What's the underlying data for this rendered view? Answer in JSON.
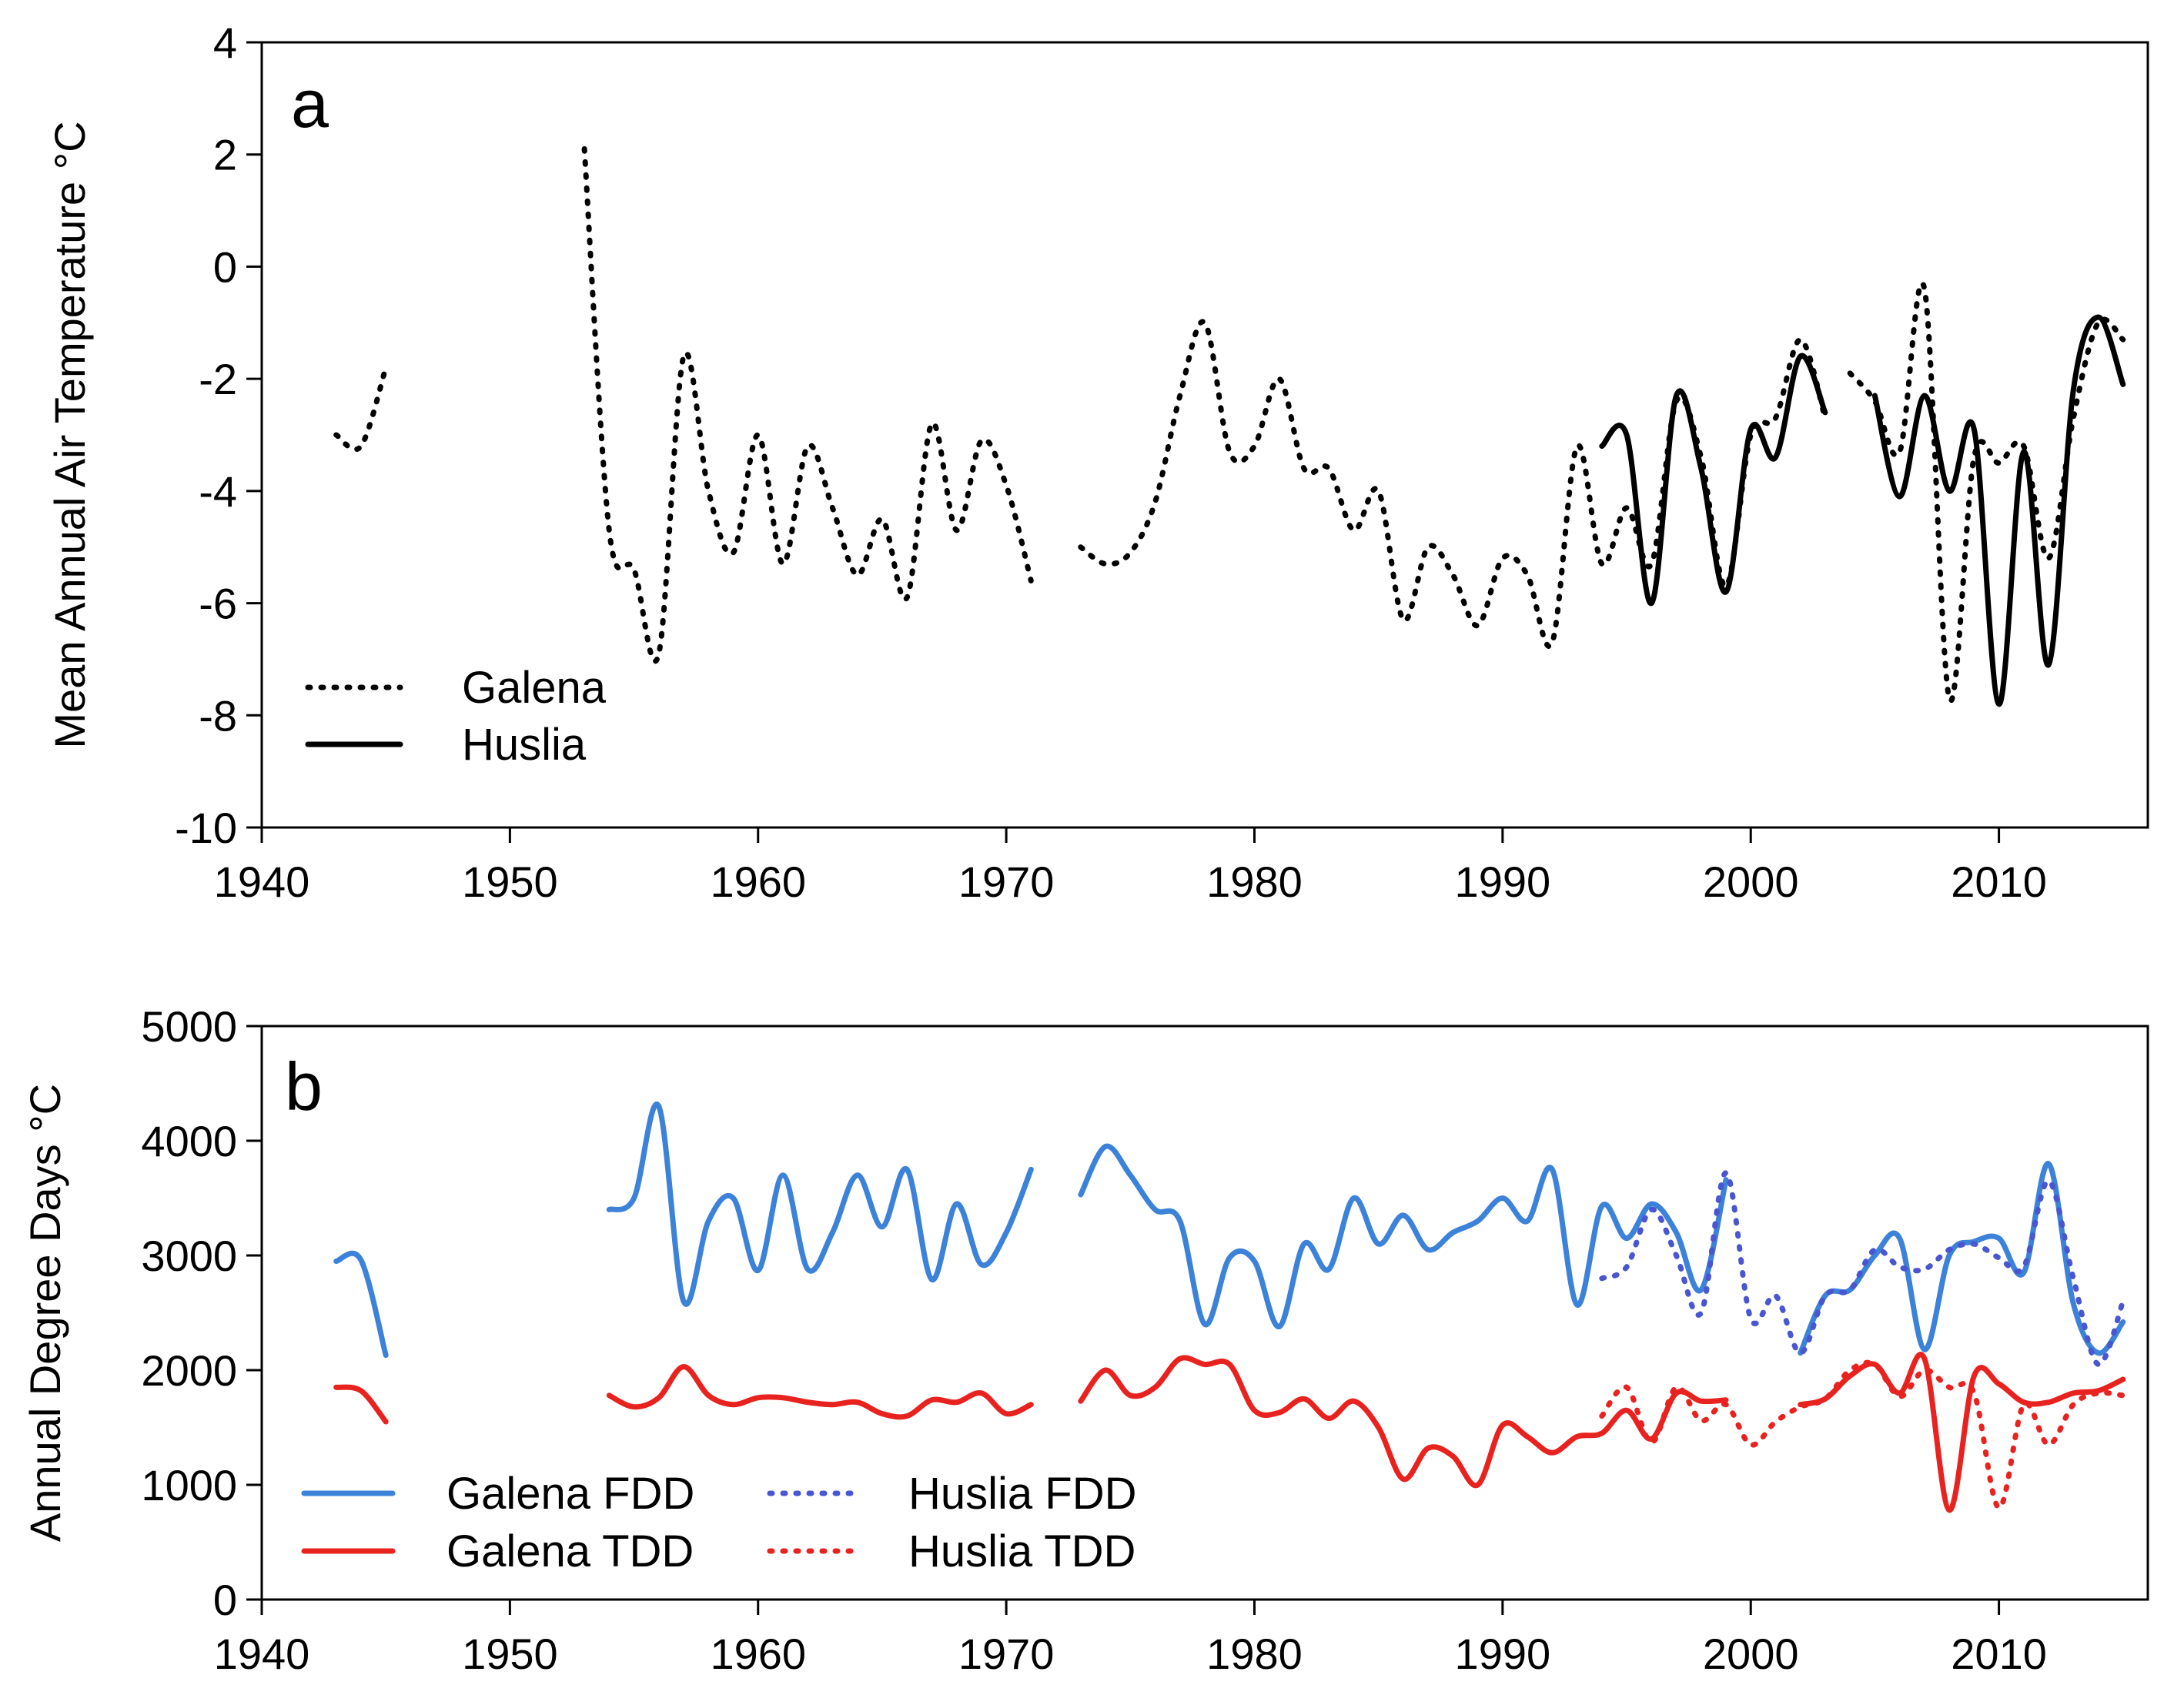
{
  "chart_data": [
    {
      "type": "line",
      "panel_label": "a",
      "ylabel": "Mean Annual Air Temperature °C",
      "xlabel": "",
      "xlim": [
        1940,
        2016
      ],
      "ylim": [
        -10,
        4
      ],
      "xticks": [
        "1940",
        "1950",
        "1960",
        "1970",
        "1980",
        "1990",
        "2000",
        "2010"
      ],
      "yticks": [
        "-10",
        "-8",
        "-6",
        "-4",
        "-2",
        "0",
        "2",
        "4"
      ],
      "legend_position": "bottom-left",
      "series": [
        {
          "name": "Galena",
          "color": "#000000",
          "style": "dotted",
          "segments": [
            {
              "x": [
                1943,
                1944,
                1945
              ],
              "y": [
                -3.0,
                -3.2,
                -1.8
              ]
            },
            {
              "x": [
                1953,
                1954,
                1955,
                1956,
                1957,
                1958,
                1959,
                1960,
                1961,
                1962,
                1963,
                1964,
                1965,
                1966,
                1967,
                1968,
                1969,
                1970,
                1971
              ],
              "y": [
                2.1,
                -4.7,
                -5.4,
                -6.9,
                -1.6,
                -4.0,
                -5.1,
                -3.0,
                -5.3,
                -3.2,
                -4.3,
                -5.5,
                -4.5,
                -5.9,
                -2.8,
                -4.7,
                -3.1,
                -3.9,
                -5.6
              ]
            },
            {
              "x": [
                1973,
                1974,
                1975,
                1976,
                1977,
                1978,
                1979,
                1980,
                1981,
                1982,
                1983,
                1984,
                1985,
                1986,
                1987,
                1988,
                1989,
                1990,
                1991,
                1992,
                1993,
                1994,
                1995,
                1996,
                1997,
                1998,
                1999,
                2000,
                2001,
                2002,
                2003
              ],
              "y": [
                -5.0,
                -5.3,
                -5.1,
                -4.2,
                -2.3,
                -1.0,
                -3.3,
                -3.2,
                -2.0,
                -3.6,
                -3.6,
                -4.7,
                -4.0,
                -6.3,
                -5.0,
                -5.5,
                -6.4,
                -5.2,
                -5.5,
                -6.7,
                -3.2,
                -5.3,
                -4.3,
                -5.3,
                -2.4,
                -3.4,
                -5.7,
                -3.0,
                -2.7,
                -1.3,
                -2.7
              ]
            },
            {
              "x": [
                2004,
                2005,
                2006,
                2007,
                2008,
                2009,
                2010,
                2011,
                2012,
                2013,
                2014,
                2015
              ],
              "y": [
                -1.9,
                -2.4,
                -3.3,
                -0.4,
                -7.7,
                -3.4,
                -3.5,
                -3.2,
                -5.2,
                -2.7,
                -1.0,
                -1.3
              ]
            }
          ]
        },
        {
          "name": "Huslia",
          "color": "#000000",
          "style": "solid",
          "segments": [
            {
              "x": [
                1994,
                1995,
                1996,
                1997,
                1998,
                1999,
                2000,
                2001,
                2002,
                2003
              ],
              "y": [
                -3.2,
                -3.0,
                -6.0,
                -2.3,
                -3.6,
                -5.8,
                -2.9,
                -3.4,
                -1.6,
                -2.6
              ]
            },
            {
              "x": [
                2005,
                2006,
                2007,
                2008,
                2009,
                2010,
                2011,
                2012,
                2013,
                2014,
                2015
              ],
              "y": [
                -2.3,
                -4.1,
                -2.3,
                -4.0,
                -2.9,
                -7.8,
                -3.3,
                -7.1,
                -2.2,
                -0.9,
                -2.1
              ]
            }
          ]
        }
      ]
    },
    {
      "type": "line",
      "panel_label": "b",
      "ylabel": "Annual Degree Days °C",
      "xlabel": "",
      "xlim": [
        1940,
        2016
      ],
      "ylim": [
        0,
        5000
      ],
      "xticks": [
        "1940",
        "1950",
        "1960",
        "1970",
        "1980",
        "1990",
        "2000",
        "2010"
      ],
      "yticks": [
        "0",
        "1000",
        "2000",
        "3000",
        "4000",
        "5000"
      ],
      "legend_position": "bottom-left",
      "series": [
        {
          "name": "Galena FDD",
          "color": "#3b82d8",
          "style": "solid",
          "segments": [
            {
              "x": [
                1943,
                1944,
                1945
              ],
              "y": [
                2950,
                2960,
                2130
              ]
            },
            {
              "x": [
                1954,
                1955,
                1956,
                1957,
                1958,
                1959,
                1960,
                1961,
                1962,
                1963,
                1964,
                1965,
                1966,
                1967,
                1968,
                1969,
                1970,
                1971
              ],
              "y": [
                3400,
                3500,
                4300,
                2600,
                3300,
                3500,
                2870,
                3700,
                2880,
                3200,
                3700,
                3250,
                3750,
                2790,
                3450,
                2920,
                3200,
                3750
              ]
            },
            {
              "x": [
                1973,
                1974,
                1975,
                1976,
                1977,
                1978,
                1979,
                1980,
                1981,
                1982,
                1983,
                1984,
                1985,
                1986,
                1987,
                1988,
                1989,
                1990,
                1991,
                1992,
                1993,
                1994,
                1995,
                1996,
                1997,
                1998,
                1999
              ],
              "y": [
                3530,
                3950,
                3700,
                3400,
                3300,
                2400,
                2980,
                2950,
                2380,
                3100,
                2880,
                3500,
                3100,
                3350,
                3050,
                3200,
                3300,
                3500,
                3300,
                3750,
                2570,
                3430,
                3150,
                3450,
                3200,
                2700,
                3660
              ]
            },
            {
              "x": [
                2002,
                2003,
                2004,
                2005,
                2006,
                2007,
                2008,
                2009,
                2010,
                2011,
                2012,
                2013,
                2014,
                2015
              ],
              "y": [
                2150,
                2650,
                2700,
                3000,
                3150,
                2180,
                3000,
                3120,
                3150,
                2850,
                3800,
                2580,
                2150,
                2420
              ]
            }
          ]
        },
        {
          "name": "Huslia FDD",
          "color": "#4a55d0",
          "style": "dotted",
          "segments": [
            {
              "x": [
                1994,
                1995,
                1996,
                1997,
                1998,
                1999,
                2000,
                2001,
                2002,
                2003,
                2004,
                2005,
                2006,
                2007,
                2008,
                2009,
                2010,
                2011,
                2012,
                2013,
                2014,
                2015
              ],
              "y": [
                2800,
                2900,
                3400,
                3000,
                2500,
                3720,
                2450,
                2650,
                2150,
                2650,
                2700,
                3050,
                2900,
                2880,
                3050,
                3100,
                2980,
                2900,
                3650,
                2800,
                2050,
                2600
              ]
            }
          ]
        },
        {
          "name": "Galena TDD",
          "color": "#e8231f",
          "style": "solid",
          "segments": [
            {
              "x": [
                1943,
                1944,
                1945
              ],
              "y": [
                1850,
                1820,
                1550
              ]
            },
            {
              "x": [
                1954,
                1955,
                1956,
                1957,
                1958,
                1959,
                1960,
                1961,
                1962,
                1963,
                1964,
                1965,
                1966,
                1967,
                1968,
                1969,
                1970,
                1971
              ],
              "y": [
                1780,
                1680,
                1760,
                2030,
                1780,
                1700,
                1760,
                1760,
                1720,
                1700,
                1720,
                1620,
                1600,
                1740,
                1720,
                1800,
                1620,
                1700
              ]
            },
            {
              "x": [
                1973,
                1974,
                1975,
                1976,
                1977,
                1978,
                1979,
                1980,
                1981,
                1982,
                1983,
                1984,
                1985,
                1986,
                1987,
                1988,
                1989,
                1990,
                1991,
                1992,
                1993,
                1994,
                1995,
                1996,
                1997,
                1998,
                1999
              ],
              "y": [
                1730,
                2000,
                1780,
                1850,
                2100,
                2050,
                2050,
                1650,
                1630,
                1750,
                1580,
                1730,
                1500,
                1050,
                1320,
                1250,
                1000,
                1520,
                1420,
                1280,
                1420,
                1450,
                1650,
                1400,
                1800,
                1730,
                1740
              ]
            },
            {
              "x": [
                2002,
                2003,
                2004,
                2005,
                2006,
                2007,
                2008,
                2009,
                2010,
                2011,
                2012,
                2013,
                2014,
                2015
              ],
              "y": [
                1700,
                1750,
                1950,
                2050,
                1800,
                2100,
                780,
                1950,
                1880,
                1720,
                1720,
                1800,
                1820,
                1920
              ]
            }
          ]
        },
        {
          "name": "Huslia TDD",
          "color": "#e8231f",
          "style": "dotted",
          "segments": [
            {
              "x": [
                1994,
                1995,
                1996,
                1997,
                1998,
                1999,
                2000,
                2001,
                2002,
                2003,
                2004,
                2005,
                2006,
                2007,
                2008,
                2009,
                2010,
                2011,
                2012,
                2013,
                2014,
                2015
              ],
              "y": [
                1600,
                1850,
                1370,
                1850,
                1560,
                1700,
                1350,
                1550,
                1680,
                1750,
                2000,
                2050,
                1770,
                2000,
                1850,
                1800,
                800,
                1700,
                1350,
                1700,
                1800,
                1780
              ]
            }
          ]
        }
      ]
    }
  ]
}
